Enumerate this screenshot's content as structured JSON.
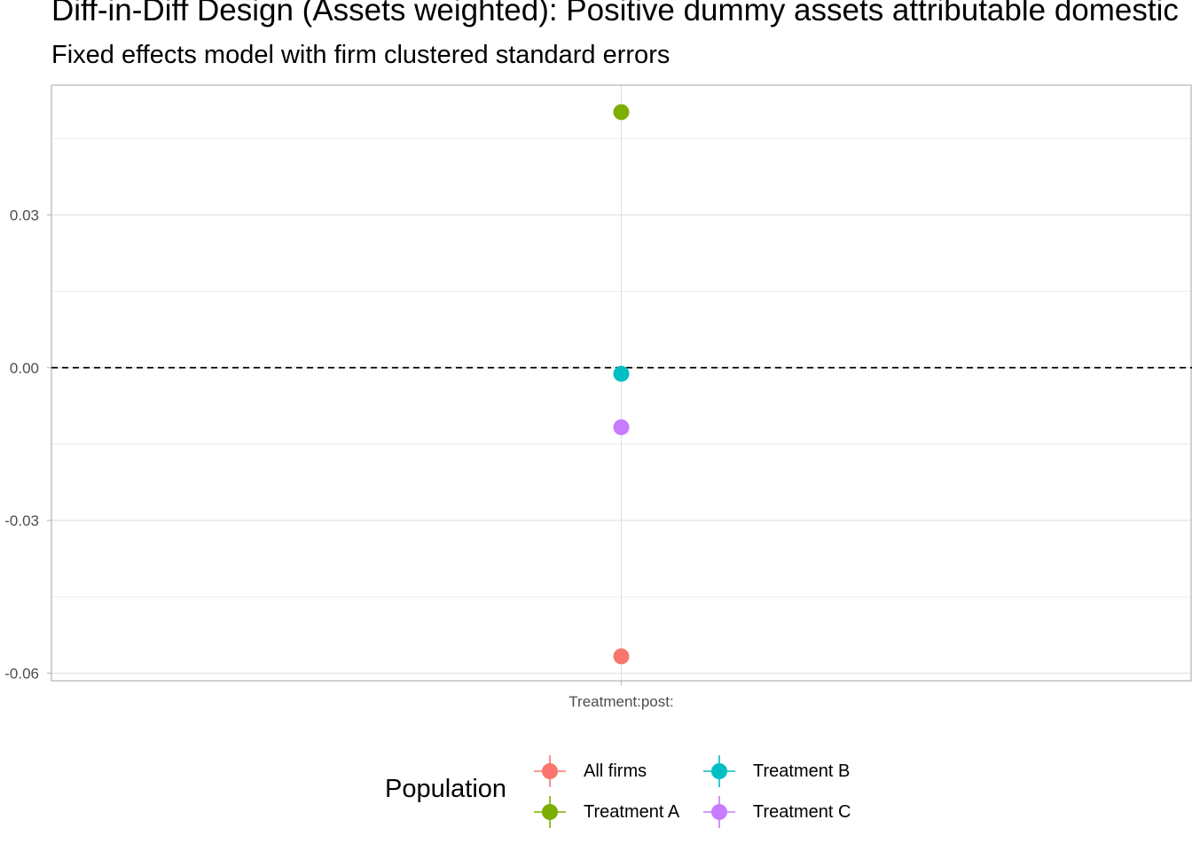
{
  "title": "Diff-in-Diff Design (Assets weighted): Positive dummy assets attributable domestic",
  "subtitle": "Fixed effects model with firm clustered standard errors",
  "chart_data": {
    "type": "scatter",
    "categories": [
      "Treatment:post:"
    ],
    "ylim": [
      -0.0615,
      0.0555
    ],
    "yticks": [
      0.03,
      0.0,
      -0.03,
      -0.06
    ],
    "ytick_labels": [
      "0.03",
      "0.00",
      "-0.03",
      "-0.06"
    ],
    "reference_line": {
      "y": 0.0,
      "style": "dashed"
    },
    "grid": true,
    "legend_position": "bottom",
    "legend_title": "Population",
    "series": [
      {
        "name": "All firms",
        "color": "#F8766D",
        "values": [
          -0.0567
        ]
      },
      {
        "name": "Treatment A",
        "color": "#7CAE00",
        "values": [
          0.0502
        ]
      },
      {
        "name": "Treatment B",
        "color": "#00BFC4",
        "values": [
          -0.0012
        ]
      },
      {
        "name": "Treatment C",
        "color": "#C77CFF",
        "values": [
          -0.0117
        ]
      }
    ]
  }
}
